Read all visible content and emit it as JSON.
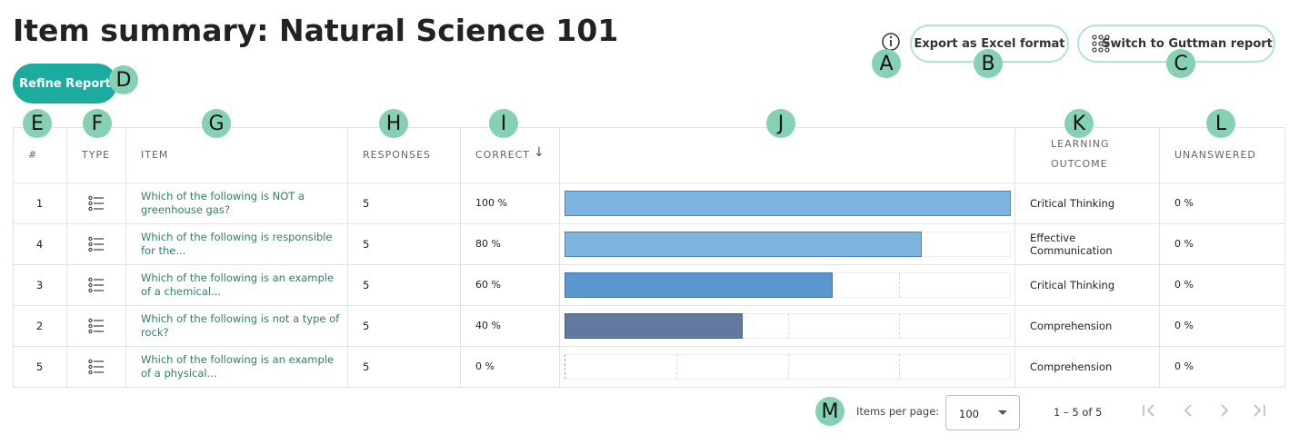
{
  "header": {
    "title": "Item summary: Natural Science 101",
    "refine_button": "Refine Report",
    "export_button": "Export as Excel format",
    "guttman_button": "Switch to Guttman report"
  },
  "annotations": [
    "A",
    "B",
    "C",
    "D",
    "E",
    "F",
    "G",
    "H",
    "I",
    "J",
    "K",
    "L",
    "M"
  ],
  "table": {
    "columns": [
      "#",
      "TYPE",
      "ITEM",
      "RESPONSES",
      "CORRECT",
      "LEARNING OUTCOME",
      "UNANSWERED"
    ],
    "bar_range": [
      0,
      100
    ],
    "bar_grid": [
      25,
      50,
      75
    ],
    "rows": [
      {
        "number": "1",
        "item": "Which of the following is NOT a greenhouse gas?",
        "responses": "5",
        "correct": {
          "value": 100,
          "label": "100 %"
        },
        "bar_color": "#7db4e0",
        "outcome": "Critical Thinking",
        "unanswered": "0 %"
      },
      {
        "number": "4",
        "item": "Which of the following is responsible for the...",
        "responses": "5",
        "correct": {
          "value": 80,
          "label": "80 %"
        },
        "bar_color": "#7db4e0",
        "outcome": "Effective Communication",
        "unanswered": "0 %"
      },
      {
        "number": "3",
        "item": "Which of the following is an example of a chemical...",
        "responses": "5",
        "correct": {
          "value": 60,
          "label": "60 %"
        },
        "bar_color": "#5a97d0",
        "outcome": "Critical Thinking",
        "unanswered": "0 %"
      },
      {
        "number": "2",
        "item": "Which of the following is not a type of rock?",
        "responses": "5",
        "correct": {
          "value": 40,
          "label": "40 %"
        },
        "bar_color": "#62789f",
        "outcome": "Comprehension",
        "unanswered": "0 %"
      },
      {
        "number": "5",
        "item": "Which of the following is an example of a physical...",
        "responses": "5",
        "correct": {
          "value": 0,
          "label": "0 %"
        },
        "bar_color": "#7db4e0",
        "outcome": "Comprehension",
        "unanswered": "0 %"
      }
    ]
  },
  "pagination": {
    "items_label": "Items per page:",
    "page_size": "100",
    "range": "1 – 5 of 5"
  }
}
